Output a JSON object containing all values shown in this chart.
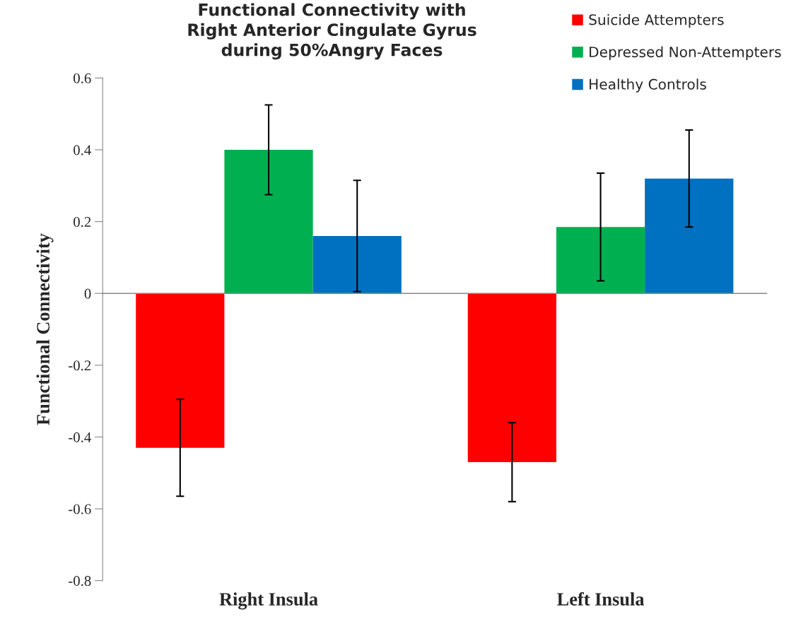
{
  "chart_data": {
    "type": "bar",
    "title": "Functional Connectivity with\nRight Anterior Cingulate Gyrus\nduring 50%Angry Faces",
    "ylabel": "Functional Connectivity",
    "categories": [
      "Right Insula",
      "Left Insula"
    ],
    "series": [
      {
        "name": "Suicide Attempters",
        "color": "#ff0000",
        "values": [
          -0.43,
          -0.47
        ],
        "errors": [
          0.135,
          0.11
        ]
      },
      {
        "name": "Depressed Non-Attempters",
        "color": "#00b050",
        "values": [
          0.4,
          0.185
        ],
        "errors": [
          0.125,
          0.15
        ]
      },
      {
        "name": "Healthy Controls",
        "color": "#0070c0",
        "values": [
          0.16,
          0.32
        ],
        "errors": [
          0.155,
          0.135
        ]
      }
    ],
    "ylim": [
      -0.8,
      0.6
    ],
    "yticks": [
      {
        "value": -0.8,
        "label": "-0.8"
      },
      {
        "value": -0.6,
        "label": "-0.6"
      },
      {
        "value": -0.4,
        "label": "-0.4"
      },
      {
        "value": -0.2,
        "label": "-0.2"
      },
      0,
      0.2,
      0.4,
      0.6
    ],
    "legend": "top right"
  }
}
